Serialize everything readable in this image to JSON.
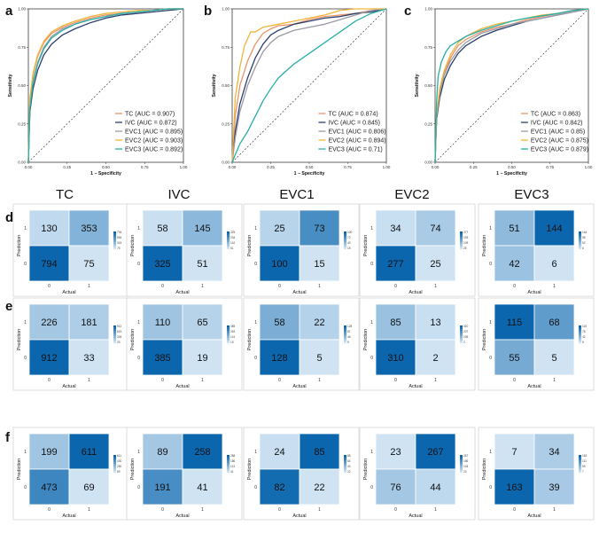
{
  "panel_labels": [
    "a",
    "b",
    "c",
    "d",
    "e",
    "f"
  ],
  "column_headers": [
    "TC",
    "IVC",
    "EVC1",
    "EVC2",
    "EVC3"
  ],
  "colors": {
    "TC": "#e8956a",
    "IVC": "#2b3f6c",
    "EVC1": "#9a9aa6",
    "EVC2": "#f0b43a",
    "EVC3": "#27b0a7",
    "diagonal": "#222222",
    "cm_low": "#cfe3f3",
    "cm_high": "#0b66ad"
  },
  "roc_axes": {
    "xlabel": "1 − Specificity",
    "ylabel": "Sensitivity",
    "ticks": [
      0.0,
      0.25,
      0.5,
      0.75,
      1.0
    ],
    "tick_labels": [
      "0.00",
      "0.25",
      "0.50",
      "0.75",
      "1.00"
    ],
    "xlim": [
      0,
      1
    ],
    "ylim": [
      0,
      1
    ]
  },
  "cm_axes": {
    "xlabel": "Actual",
    "ylabel": "Prediction",
    "tick_labels": [
      "0",
      "1"
    ]
  },
  "chart_data": [
    {
      "type": "line",
      "panel": "a",
      "xlabel": "1 − Specificity",
      "ylabel": "Sensitivity",
      "xlim": [
        0,
        1
      ],
      "ylim": [
        0,
        1
      ],
      "legend_position": "bottom-right",
      "series": [
        {
          "key": "TC",
          "name": "TC (AUC = 0.907)",
          "auc": 0.907,
          "x": [
            0,
            0.01,
            0.03,
            0.06,
            0.1,
            0.15,
            0.22,
            0.3,
            0.4,
            0.5,
            0.6,
            0.7,
            0.8,
            0.9,
            1.0
          ],
          "y": [
            0,
            0.4,
            0.57,
            0.69,
            0.78,
            0.84,
            0.88,
            0.91,
            0.94,
            0.96,
            0.97,
            0.98,
            0.99,
            1.0,
            1.0
          ]
        },
        {
          "key": "IVC",
          "name": "IVC (AUC = 0.872)",
          "auc": 0.872,
          "x": [
            0,
            0.01,
            0.03,
            0.06,
            0.1,
            0.15,
            0.22,
            0.3,
            0.4,
            0.5,
            0.6,
            0.7,
            0.8,
            0.9,
            1.0
          ],
          "y": [
            0,
            0.33,
            0.48,
            0.6,
            0.7,
            0.77,
            0.83,
            0.87,
            0.91,
            0.94,
            0.96,
            0.97,
            0.98,
            0.99,
            1.0
          ]
        },
        {
          "key": "EVC1",
          "name": "EVC1 (AUC = 0.895)",
          "auc": 0.895,
          "x": [
            0,
            0.01,
            0.03,
            0.06,
            0.1,
            0.15,
            0.22,
            0.3,
            0.4,
            0.5,
            0.6,
            0.7,
            0.8,
            0.9,
            1.0
          ],
          "y": [
            0,
            0.38,
            0.53,
            0.65,
            0.75,
            0.82,
            0.87,
            0.9,
            0.93,
            0.95,
            0.97,
            0.98,
            0.99,
            1.0,
            1.0
          ]
        },
        {
          "key": "EVC2",
          "name": "EVC2 (AUC = 0.903)",
          "auc": 0.903,
          "x": [
            0,
            0.01,
            0.03,
            0.06,
            0.1,
            0.15,
            0.22,
            0.3,
            0.4,
            0.5,
            0.6,
            0.7,
            0.8,
            0.9,
            1.0
          ],
          "y": [
            0,
            0.42,
            0.58,
            0.7,
            0.79,
            0.85,
            0.89,
            0.92,
            0.95,
            0.97,
            0.98,
            0.99,
            0.99,
            1.0,
            1.0
          ]
        },
        {
          "key": "EVC3",
          "name": "EVC3 (AUC = 0.892)",
          "auc": 0.892,
          "x": [
            0,
            0.01,
            0.03,
            0.06,
            0.1,
            0.15,
            0.22,
            0.3,
            0.4,
            0.5,
            0.6,
            0.7,
            0.8,
            0.9,
            1.0
          ],
          "y": [
            0,
            0.35,
            0.52,
            0.64,
            0.74,
            0.81,
            0.86,
            0.9,
            0.93,
            0.95,
            0.97,
            0.98,
            0.99,
            1.0,
            1.0
          ]
        }
      ]
    },
    {
      "type": "line",
      "panel": "b",
      "xlabel": "1 − Specificity",
      "ylabel": "Sensitivity",
      "xlim": [
        0,
        1
      ],
      "ylim": [
        0,
        1
      ],
      "legend_position": "bottom-right",
      "series": [
        {
          "key": "TC",
          "name": "TC (AUC = 0.874)",
          "auc": 0.874,
          "x": [
            0,
            0.02,
            0.05,
            0.1,
            0.15,
            0.2,
            0.25,
            0.3,
            0.4,
            0.5,
            0.6,
            0.7,
            0.8,
            0.9,
            1.0
          ],
          "y": [
            0,
            0.3,
            0.5,
            0.66,
            0.77,
            0.84,
            0.87,
            0.89,
            0.9,
            0.93,
            0.95,
            0.96,
            0.97,
            0.99,
            1.0
          ]
        },
        {
          "key": "IVC",
          "name": "IVC (AUC = 0.845)",
          "auc": 0.845,
          "x": [
            0,
            0.02,
            0.05,
            0.1,
            0.15,
            0.2,
            0.25,
            0.3,
            0.4,
            0.5,
            0.6,
            0.7,
            0.8,
            0.9,
            1.0
          ],
          "y": [
            0,
            0.2,
            0.38,
            0.55,
            0.68,
            0.77,
            0.83,
            0.86,
            0.9,
            0.92,
            0.94,
            0.95,
            0.97,
            0.98,
            1.0
          ]
        },
        {
          "key": "EVC1",
          "name": "EVC1 (AUC = 0.806)",
          "auc": 0.806,
          "x": [
            0,
            0.02,
            0.05,
            0.1,
            0.15,
            0.2,
            0.25,
            0.3,
            0.4,
            0.5,
            0.6,
            0.7,
            0.8,
            0.9,
            1.0
          ],
          "y": [
            0,
            0.16,
            0.33,
            0.5,
            0.62,
            0.72,
            0.78,
            0.82,
            0.86,
            0.88,
            0.9,
            0.93,
            0.96,
            0.99,
            1.0
          ]
        },
        {
          "key": "EVC2",
          "name": "EVC2 (AUC = 0.894)",
          "auc": 0.894,
          "x": [
            0,
            0.02,
            0.05,
            0.08,
            0.12,
            0.15,
            0.2,
            0.3,
            0.4,
            0.5,
            0.6,
            0.7,
            0.8,
            0.9,
            1.0
          ],
          "y": [
            0,
            0.42,
            0.62,
            0.76,
            0.85,
            0.85,
            0.88,
            0.9,
            0.92,
            0.94,
            0.96,
            0.99,
            1.0,
            1.0,
            1.0
          ]
        },
        {
          "key": "EVC3",
          "name": "EVC3 (AUC = 0.71)",
          "auc": 0.71,
          "x": [
            0,
            0.02,
            0.05,
            0.1,
            0.15,
            0.2,
            0.25,
            0.3,
            0.4,
            0.5,
            0.6,
            0.7,
            0.8,
            0.9,
            1.0
          ],
          "y": [
            0,
            0.05,
            0.12,
            0.2,
            0.3,
            0.4,
            0.48,
            0.55,
            0.64,
            0.71,
            0.78,
            0.85,
            0.92,
            0.97,
            1.0
          ]
        }
      ]
    },
    {
      "type": "line",
      "panel": "c",
      "xlabel": "1 − Specificity",
      "ylabel": "Sensitivity",
      "xlim": [
        0,
        1
      ],
      "ylim": [
        0,
        1
      ],
      "legend_position": "bottom-right",
      "series": [
        {
          "key": "TC",
          "name": "TC (AUC = 0.863)",
          "auc": 0.863,
          "x": [
            0,
            0.01,
            0.03,
            0.06,
            0.1,
            0.15,
            0.2,
            0.3,
            0.4,
            0.5,
            0.6,
            0.7,
            0.8,
            0.9,
            1.0
          ],
          "y": [
            0,
            0.3,
            0.46,
            0.58,
            0.68,
            0.76,
            0.8,
            0.85,
            0.88,
            0.9,
            0.93,
            0.95,
            0.97,
            0.99,
            1.0
          ]
        },
        {
          "key": "IVC",
          "name": "IVC (AUC = 0.842)",
          "auc": 0.842,
          "x": [
            0,
            0.01,
            0.03,
            0.06,
            0.1,
            0.15,
            0.2,
            0.3,
            0.4,
            0.5,
            0.6,
            0.7,
            0.8,
            0.9,
            1.0
          ],
          "y": [
            0,
            0.28,
            0.42,
            0.54,
            0.63,
            0.71,
            0.76,
            0.82,
            0.86,
            0.89,
            0.92,
            0.94,
            0.96,
            0.98,
            1.0
          ]
        },
        {
          "key": "EVC1",
          "name": "EVC1 (AUC = 0.85)",
          "auc": 0.85,
          "x": [
            0,
            0.01,
            0.03,
            0.06,
            0.1,
            0.15,
            0.2,
            0.3,
            0.4,
            0.5,
            0.6,
            0.7,
            0.8,
            0.9,
            1.0
          ],
          "y": [
            0,
            0.3,
            0.45,
            0.57,
            0.66,
            0.73,
            0.78,
            0.84,
            0.87,
            0.9,
            0.92,
            0.94,
            0.96,
            0.98,
            1.0
          ]
        },
        {
          "key": "EVC2",
          "name": "EVC2 (AUC = 0.875)",
          "auc": 0.875,
          "x": [
            0,
            0.01,
            0.03,
            0.06,
            0.1,
            0.15,
            0.2,
            0.3,
            0.4,
            0.5,
            0.6,
            0.7,
            0.8,
            0.9,
            1.0
          ],
          "y": [
            0,
            0.32,
            0.48,
            0.6,
            0.7,
            0.78,
            0.82,
            0.87,
            0.9,
            0.92,
            0.94,
            0.96,
            0.97,
            0.99,
            1.0
          ]
        },
        {
          "key": "EVC3",
          "name": "EVC3 (AUC = 0.879)",
          "auc": 0.879,
          "x": [
            0,
            0.01,
            0.02,
            0.04,
            0.07,
            0.1,
            0.15,
            0.2,
            0.3,
            0.4,
            0.5,
            0.6,
            0.8,
            0.9,
            1.0
          ],
          "y": [
            0,
            0.4,
            0.56,
            0.65,
            0.72,
            0.76,
            0.79,
            0.82,
            0.86,
            0.89,
            0.92,
            0.94,
            0.97,
            0.99,
            1.0
          ]
        }
      ]
    },
    {
      "type": "heatmap",
      "panel": "d",
      "xlabel": "Actual",
      "ylabel": "Prediction",
      "categories": [
        "0",
        "1"
      ],
      "matrices": [
        {
          "name": "TC",
          "pred1": [
            130,
            353
          ],
          "pred0": [
            794,
            75
          ]
        },
        {
          "name": "IVC",
          "pred1": [
            58,
            145
          ],
          "pred0": [
            325,
            51
          ]
        },
        {
          "name": "EVC1",
          "pred1": [
            25,
            73
          ],
          "pred0": [
            100,
            15
          ]
        },
        {
          "name": "EVC2",
          "pred1": [
            34,
            74
          ],
          "pred0": [
            277,
            25
          ]
        },
        {
          "name": "EVC3",
          "pred1": [
            51,
            144
          ],
          "pred0": [
            42,
            6
          ]
        }
      ]
    },
    {
      "type": "heatmap",
      "panel": "e",
      "xlabel": "Actual",
      "ylabel": "Prediction",
      "categories": [
        "0",
        "1"
      ],
      "matrices": [
        {
          "name": "TC",
          "pred1": [
            226,
            181
          ],
          "pred0": [
            912,
            33
          ]
        },
        {
          "name": "IVC",
          "pred1": [
            110,
            65
          ],
          "pred0": [
            385,
            19
          ]
        },
        {
          "name": "EVC1",
          "pred1": [
            58,
            22
          ],
          "pred0": [
            128,
            5
          ]
        },
        {
          "name": "EVC2",
          "pred1": [
            85,
            13
          ],
          "pred0": [
            310,
            2
          ]
        },
        {
          "name": "EVC3",
          "pred1": [
            115,
            68
          ],
          "pred0": [
            55,
            5
          ]
        }
      ]
    },
    {
      "type": "heatmap",
      "panel": "f",
      "xlabel": "Actual",
      "ylabel": "Prediction",
      "categories": [
        "0",
        "1"
      ],
      "matrices": [
        {
          "name": "TC",
          "pred1": [
            199,
            611
          ],
          "pred0": [
            473,
            69
          ]
        },
        {
          "name": "IVC",
          "pred1": [
            89,
            258
          ],
          "pred0": [
            191,
            41
          ]
        },
        {
          "name": "EVC1",
          "pred1": [
            24,
            85
          ],
          "pred0": [
            82,
            22
          ]
        },
        {
          "name": "EVC2",
          "pred1": [
            23,
            267
          ],
          "pred0": [
            76,
            44
          ]
        },
        {
          "name": "EVC3",
          "pred1": [
            7,
            34
          ],
          "pred0": [
            163,
            39
          ]
        }
      ]
    }
  ]
}
